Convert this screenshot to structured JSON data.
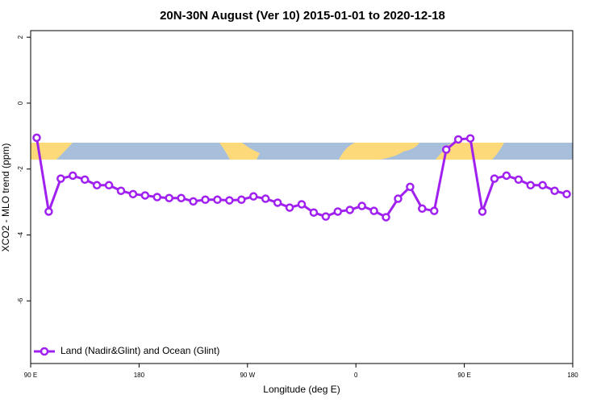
{
  "chart_data": {
    "type": "line",
    "title": "20N-30N August (Ver 10)   2015-01-01 to 2020-12-18",
    "x_label": "Longitude (deg E)",
    "y_label": "XCO2 - MLO trend (ppm)",
    "x": [
      95,
      105,
      115,
      125,
      135,
      145,
      155,
      165,
      175,
      185,
      195,
      205,
      215,
      225,
      235,
      245,
      255,
      265,
      275,
      285,
      295,
      305,
      315,
      325,
      335,
      345,
      355,
      365,
      375,
      385,
      395,
      405,
      415,
      425,
      435,
      445,
      455,
      465,
      475,
      485,
      495,
      505,
      515,
      525,
      535
    ],
    "series": [
      {
        "name": "Land (Nadir&Glint) and Ocean (Glint)",
        "color": "#a020f0",
        "values": [
          -1.05,
          -3.29,
          -2.29,
          -2.2,
          -2.32,
          -2.49,
          -2.49,
          -2.66,
          -2.76,
          -2.8,
          -2.85,
          -2.88,
          -2.88,
          -2.98,
          -2.93,
          -2.93,
          -2.95,
          -2.93,
          -2.83,
          -2.9,
          -3.02,
          -3.17,
          -3.07,
          -3.32,
          -3.44,
          -3.29,
          -3.24,
          -3.12,
          -3.27,
          -3.46,
          -2.9,
          -2.54,
          -3.2,
          -3.27,
          -1.41,
          -1.1,
          -1.07,
          -3.29,
          -2.29,
          -2.2,
          -2.32,
          -2.49,
          -2.49,
          -2.66,
          -2.76
        ]
      }
    ],
    "xlim": [
      90,
      540
    ],
    "xticks": [
      {
        "value": 90,
        "label": "90 E"
      },
      180,
      {
        "value": 270,
        "label": "90 W"
      },
      {
        "value": 360,
        "label": "0"
      },
      {
        "value": 450,
        "label": "90 E"
      },
      {
        "value": 540,
        "label": "180"
      }
    ],
    "ylim": [
      -7.9,
      2.2
    ],
    "yticks": [
      2,
      0,
      -2,
      -4,
      -6
    ],
    "legend": "bottomleft"
  }
}
